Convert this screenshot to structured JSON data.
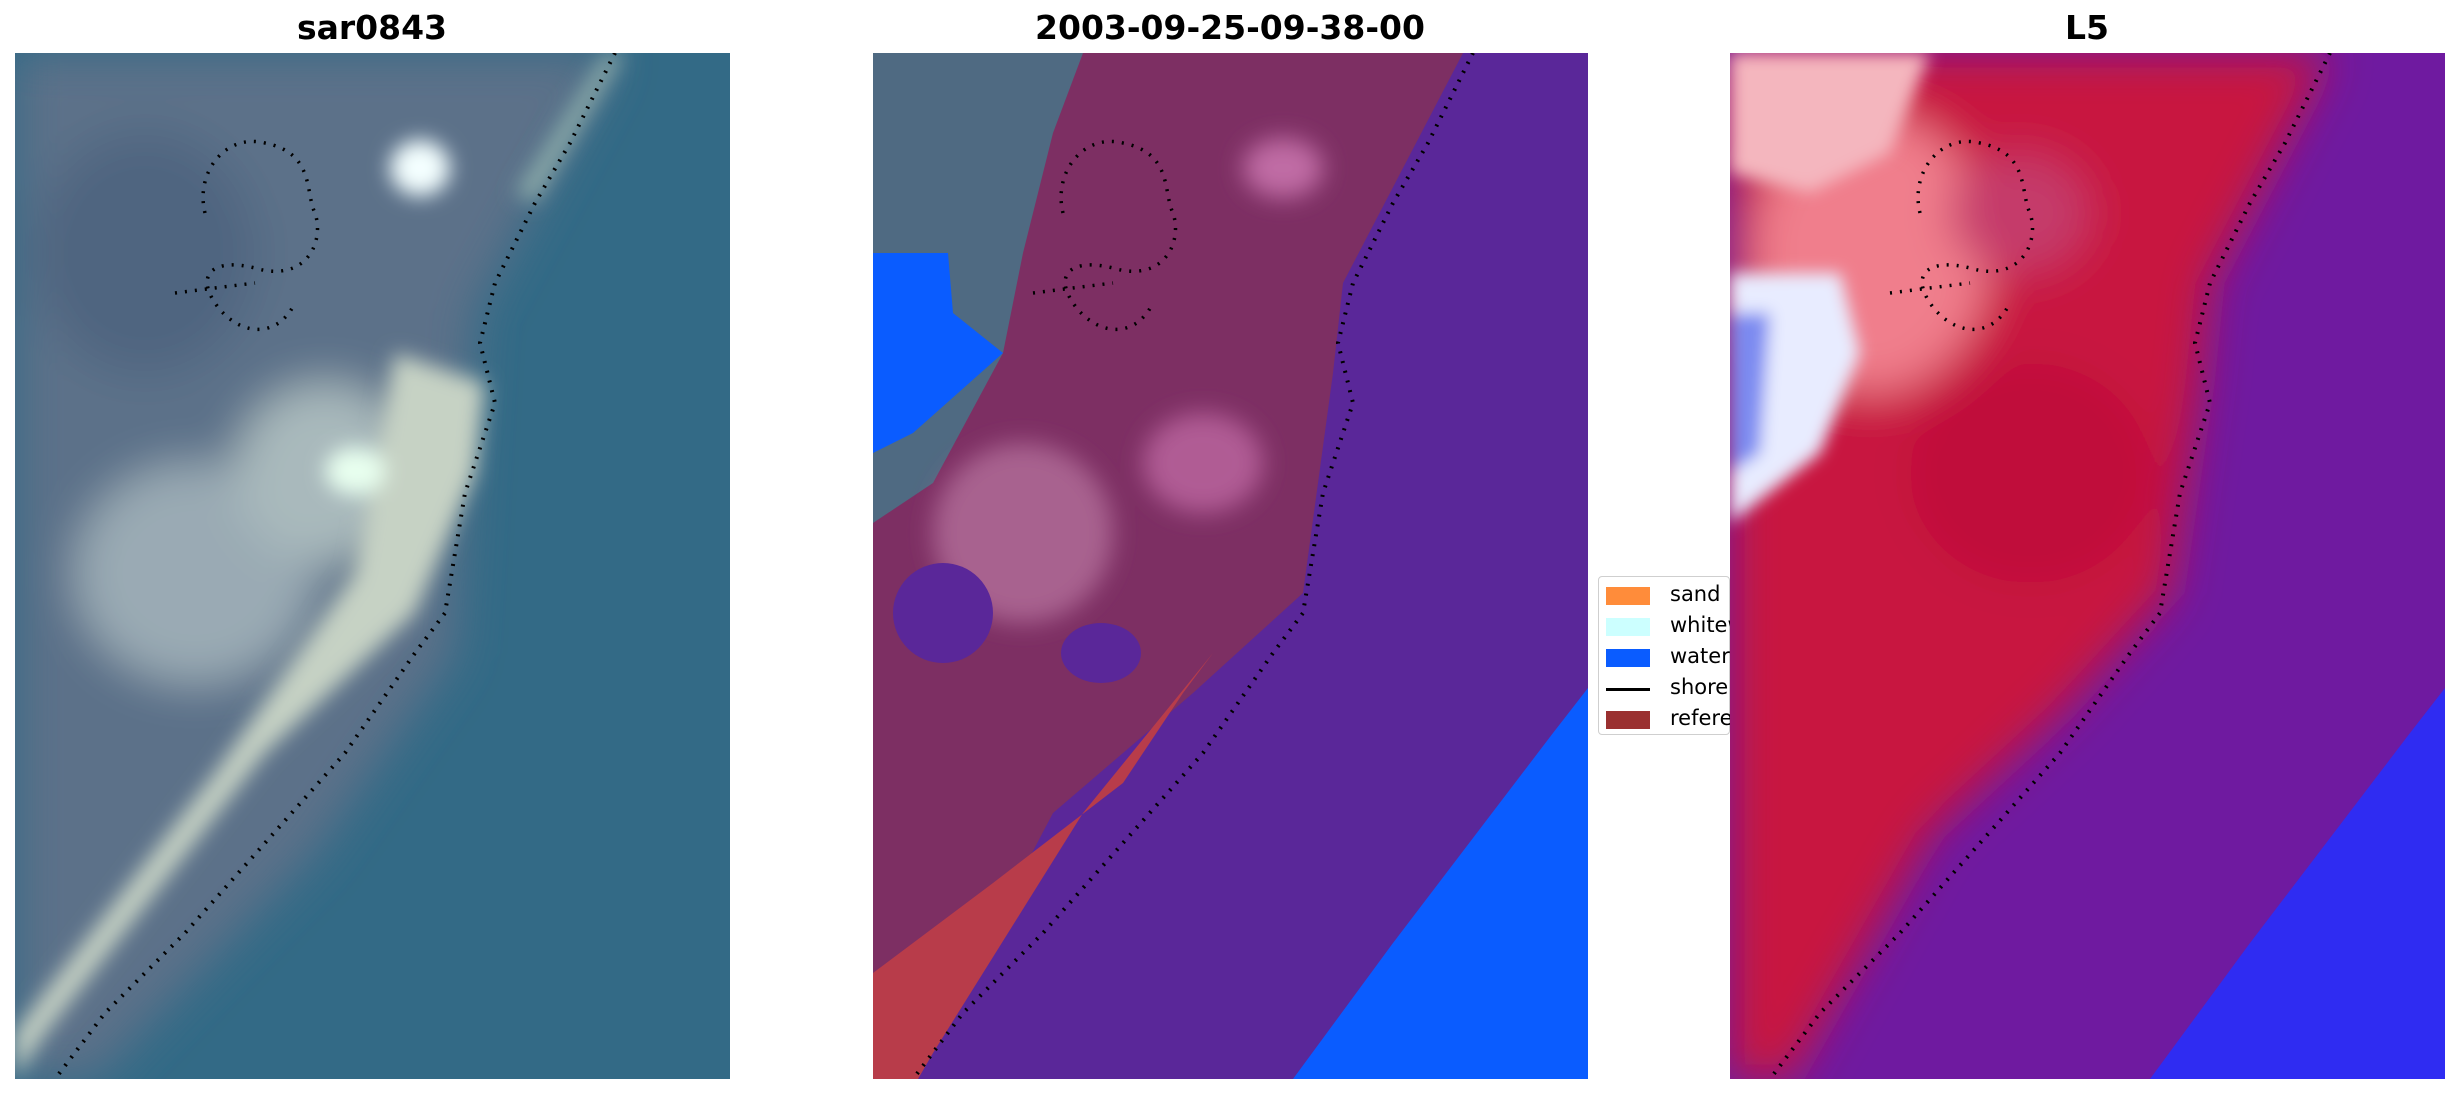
{
  "panels": [
    {
      "title": "sar0843"
    },
    {
      "title": "2003-09-25-09-38-00"
    },
    {
      "title": "L5"
    }
  ],
  "legend": {
    "items": [
      {
        "label": "sand",
        "color": "#ff8c3a",
        "kind": "patch"
      },
      {
        "label": "whitewater",
        "color": "#ccffff",
        "kind": "patch"
      },
      {
        "label": "water",
        "color": "#0a5cff",
        "kind": "patch"
      },
      {
        "label": "shoreline",
        "color": "#000000",
        "kind": "line"
      },
      {
        "label": "reference",
        "color": "#9a3030",
        "kind": "patch"
      }
    ]
  },
  "colors": {
    "sea_rgb": "#336a86",
    "land_rgb": "#5a7187",
    "sand_rgb": "#c9d4c6",
    "class_water_overlay": "#5a2799",
    "class_water_far": "#0a5cff",
    "class_land": "#7d2f63",
    "index_land": "#c8163f",
    "index_water": "#6f1aa0",
    "index_deep": "#2f2cf2"
  }
}
